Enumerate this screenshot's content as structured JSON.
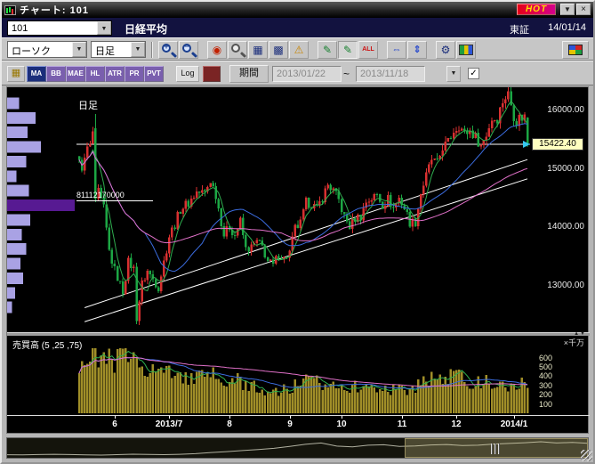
{
  "window": {
    "title": "チャート: 101",
    "hot_label": "HOT",
    "minimize_glyph": "▼",
    "close_glyph": "×"
  },
  "quote_bar": {
    "code": "101",
    "name": "日経平均",
    "exchange": "東証",
    "date": "14/01/14",
    "combo_arrow": "▼"
  },
  "toolbar1": {
    "chart_type": "ローソク",
    "timeframe": "日足",
    "combo_arrow": "▼",
    "buttons": [
      {
        "name": "zoom-in-button",
        "kind": "mag",
        "glyph": "+"
      },
      {
        "name": "zoom-out-button",
        "kind": "mag",
        "glyph": "−"
      },
      {
        "name": "capture-button",
        "kind": "red",
        "glyph": "◉",
        "gap": true
      },
      {
        "name": "search-button",
        "kind": "mag2",
        "glyph": ""
      },
      {
        "name": "grid-button",
        "kind": "navy",
        "glyph": "▦"
      },
      {
        "name": "grid-alt-button",
        "kind": "navy",
        "glyph": "▩"
      },
      {
        "name": "alert-button",
        "kind": "warn",
        "glyph": "⚠"
      },
      {
        "name": "draw-line-button",
        "kind": "green",
        "glyph": "✎",
        "gap": true
      },
      {
        "name": "draw-line-alt-button",
        "kind": "green pressed",
        "glyph": "✎"
      },
      {
        "name": "delete-all-button",
        "kind": "redtext",
        "glyph": "ALL"
      },
      {
        "name": "fit-width-button",
        "kind": "blue",
        "glyph": "⇔",
        "gap": true
      },
      {
        "name": "fit-height-button",
        "kind": "blue",
        "glyph": "⇕"
      },
      {
        "name": "settings-button",
        "kind": "navy",
        "glyph": "⚙",
        "gap": true
      },
      {
        "name": "palette-button",
        "kind": "palette",
        "glyph": ""
      }
    ]
  },
  "toolbar2": {
    "grid_glyph": "▦",
    "indicators": [
      {
        "label": "MA",
        "active": true
      },
      {
        "label": "BB"
      },
      {
        "label": "MAE"
      },
      {
        "label": "HL"
      },
      {
        "label": "ATR"
      },
      {
        "label": "PR"
      },
      {
        "label": "PVT"
      }
    ],
    "log_label": "Log",
    "period_label": "期間",
    "date_from": "2013/01/22",
    "tilde": "~",
    "date_to": "2013/11/18",
    "dropdown_glyph": "▼",
    "checkbox_glyph": "✓"
  },
  "chart": {
    "panel_label": "日足",
    "current_price_label": "15422.40",
    "anchor_label": "81112170000"
  },
  "splitter": {
    "up_glyph": "▲",
    "down_glyph": "▼"
  },
  "volume_panel": {
    "title": "売買高 (5 ,25 ,75)",
    "unit": "×千万"
  },
  "chart_data": {
    "type": "candlestick",
    "symbol": "日経平均",
    "timeframe": "日足",
    "days_total": 165,
    "price_axis": {
      "min": 12200,
      "max": 16400,
      "current": 15422.4,
      "ticks": [
        {
          "v": 16000,
          "label": "16000.00"
        },
        {
          "v": 15000,
          "label": "15000.00"
        },
        {
          "v": 14000,
          "label": "14000.00"
        },
        {
          "v": 13000,
          "label": "13000.00"
        }
      ]
    },
    "x_ticks": [
      {
        "day": 13,
        "label": "6"
      },
      {
        "day": 33,
        "label": "2013/7"
      },
      {
        "day": 55,
        "label": "8"
      },
      {
        "day": 77,
        "label": "9"
      },
      {
        "day": 96,
        "label": "10"
      },
      {
        "day": 118,
        "label": "11"
      },
      {
        "day": 138,
        "label": "12"
      },
      {
        "day": 159,
        "label": "2014/1"
      }
    ],
    "close_waypoints": [
      [
        0,
        15100
      ],
      [
        1,
        15040
      ],
      [
        2,
        15140
      ],
      [
        3,
        15360
      ],
      [
        4,
        15380
      ],
      [
        5,
        15630
      ],
      [
        6,
        14483
      ],
      [
        7,
        14600
      ],
      [
        9,
        14311
      ],
      [
        11,
        13590
      ],
      [
        13,
        13260
      ],
      [
        16,
        12900
      ],
      [
        18,
        13400
      ],
      [
        20,
        13290
      ],
      [
        21,
        12450
      ],
      [
        23,
        13030
      ],
      [
        25,
        13250
      ],
      [
        29,
        12970
      ],
      [
        33,
        13850
      ],
      [
        35,
        14050
      ],
      [
        37,
        14310
      ],
      [
        40,
        14420
      ],
      [
        43,
        14600
      ],
      [
        46,
        14590
      ],
      [
        48,
        14810
      ],
      [
        50,
        14560
      ],
      [
        53,
        13870
      ],
      [
        55,
        14010
      ],
      [
        57,
        13870
      ],
      [
        59,
        14100
      ],
      [
        61,
        13620
      ],
      [
        63,
        13650
      ],
      [
        65,
        13750
      ],
      [
        67,
        13660
      ],
      [
        69,
        13420
      ],
      [
        71,
        13340
      ],
      [
        73,
        13540
      ],
      [
        75,
        13460
      ],
      [
        77,
        13570
      ],
      [
        79,
        13980
      ],
      [
        81,
        14060
      ],
      [
        83,
        14420
      ],
      [
        85,
        14400
      ],
      [
        87,
        14310
      ],
      [
        89,
        14510
      ],
      [
        91,
        14730
      ],
      [
        93,
        14620
      ],
      [
        95,
        14460
      ],
      [
        97,
        14170
      ],
      [
        99,
        14020
      ],
      [
        101,
        14160
      ],
      [
        103,
        14190
      ],
      [
        105,
        14440
      ],
      [
        107,
        14490
      ],
      [
        109,
        14560
      ],
      [
        111,
        14390
      ],
      [
        113,
        14490
      ],
      [
        115,
        14330
      ],
      [
        117,
        14500
      ],
      [
        119,
        14330
      ],
      [
        121,
        14090
      ],
      [
        123,
        14090
      ],
      [
        125,
        14590
      ],
      [
        127,
        14880
      ],
      [
        129,
        15160
      ],
      [
        131,
        15080
      ],
      [
        133,
        15380
      ],
      [
        135,
        15450
      ],
      [
        137,
        15660
      ],
      [
        139,
        15750
      ],
      [
        141,
        15610
      ],
      [
        143,
        15650
      ],
      [
        145,
        15550
      ],
      [
        147,
        15400
      ],
      [
        149,
        15590
      ],
      [
        151,
        15860
      ],
      [
        153,
        15870
      ],
      [
        155,
        16170
      ],
      [
        157,
        16290
      ],
      [
        159,
        15910
      ],
      [
        160,
        15810
      ],
      [
        161,
        15880
      ],
      [
        162,
        15880
      ],
      [
        163,
        15912
      ],
      [
        164,
        15422
      ]
    ],
    "special_candles": {
      "6": [
        15700,
        15942,
        14430,
        14483
      ],
      "164": [
        15880,
        15890,
        15380,
        15422
      ]
    },
    "ma_periods": [
      5,
      25,
      75
    ],
    "ma_colors": [
      "#2fae4f",
      "#3b6cdf",
      "#e070c8"
    ],
    "candle_up_color": "#d83030",
    "candle_down_color": "#1ca644",
    "trendline_color": "#ffffff",
    "trendlines": [
      [
        [
          2,
          12380
        ],
        [
          164,
          14830
        ]
      ],
      [
        [
          2,
          12620
        ],
        [
          164,
          15160
        ]
      ]
    ],
    "current_price_marker_color": "#35c8f0",
    "volume_axis": {
      "ticks": [
        {
          "v": 600,
          "label": "600"
        },
        {
          "v": 500,
          "label": "500"
        },
        {
          "v": 400,
          "label": "400"
        },
        {
          "v": 300,
          "label": "300"
        },
        {
          "v": 200,
          "label": "200"
        },
        {
          "v": 100,
          "label": "100"
        }
      ]
    },
    "volume_waypoints": [
      [
        0,
        520
      ],
      [
        2,
        640
      ],
      [
        3,
        560
      ],
      [
        6,
        700
      ],
      [
        8,
        560
      ],
      [
        11,
        580
      ],
      [
        13,
        500
      ],
      [
        15,
        660
      ],
      [
        18,
        580
      ],
      [
        21,
        690
      ],
      [
        23,
        540
      ],
      [
        25,
        500
      ],
      [
        29,
        460
      ],
      [
        33,
        440
      ],
      [
        38,
        400
      ],
      [
        43,
        370
      ],
      [
        48,
        420
      ],
      [
        53,
        330
      ],
      [
        58,
        350
      ],
      [
        63,
        290
      ],
      [
        68,
        250
      ],
      [
        73,
        230
      ],
      [
        78,
        280
      ],
      [
        83,
        350
      ],
      [
        88,
        320
      ],
      [
        93,
        340
      ],
      [
        98,
        300
      ],
      [
        103,
        270
      ],
      [
        108,
        290
      ],
      [
        113,
        260
      ],
      [
        118,
        250
      ],
      [
        123,
        280
      ],
      [
        127,
        400
      ],
      [
        131,
        360
      ],
      [
        135,
        380
      ],
      [
        139,
        400
      ],
      [
        143,
        350
      ],
      [
        147,
        320
      ],
      [
        151,
        340
      ],
      [
        155,
        280
      ],
      [
        157,
        240
      ],
      [
        160,
        320
      ],
      [
        164,
        350
      ]
    ],
    "volume_bar_color": "#a08e28",
    "volume_profile": {
      "label": "81112170000",
      "bar_color": "#a9a2e4",
      "highlight_color": "#571a92",
      "highlight_price": 14375,
      "levels": [
        [
          16125,
          18
        ],
        [
          15875,
          42
        ],
        [
          15625,
          30
        ],
        [
          15375,
          50
        ],
        [
          15125,
          28
        ],
        [
          14875,
          14
        ],
        [
          14625,
          32
        ],
        [
          14375,
          100
        ],
        [
          14125,
          34
        ],
        [
          13875,
          22
        ],
        [
          13625,
          28
        ],
        [
          13375,
          20
        ],
        [
          13125,
          24
        ],
        [
          12875,
          12
        ],
        [
          12625,
          7
        ]
      ]
    },
    "nav_sparkline": [
      8800,
      8700,
      8900,
      9050,
      8900,
      8750,
      8600,
      8850,
      9100,
      9000,
      8850,
      9050,
      9400,
      10100,
      10600,
      11200,
      11800,
      12500,
      13600,
      14800,
      15600,
      13800,
      13300,
      14300,
      14550,
      13650,
      13900,
      14450,
      14700,
      14100,
      14300,
      14950,
      15350,
      15750,
      16300,
      15600,
      15900,
      15420
    ]
  }
}
